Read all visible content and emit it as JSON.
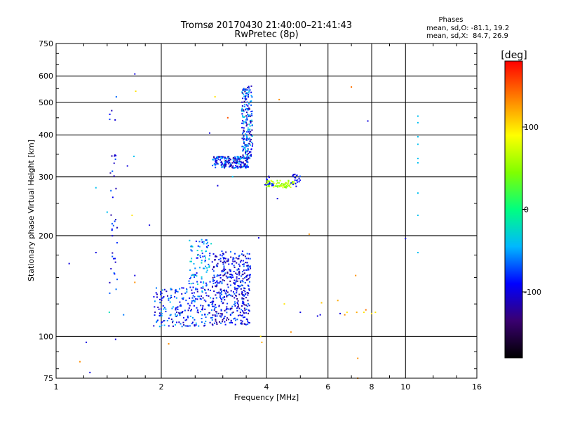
{
  "chart_data": {
    "type": "scatter",
    "title": "Tromsø 20170430 21:40:00–21:41:43",
    "subtitle": "RwPretec (8p)",
    "xlabel": "Frequency [MHz]",
    "ylabel": "Stationary phase Virtual Height [km]",
    "x_scale": "log",
    "y_scale": "log",
    "xlim": [
      1,
      16
    ],
    "ylim": [
      75,
      750
    ],
    "x_ticks": [
      1,
      2,
      4,
      6,
      8,
      10,
      16
    ],
    "y_ticks": [
      75,
      100,
      200,
      300,
      400,
      500,
      600,
      750
    ],
    "grid": true,
    "phase_info": {
      "title": "Phases",
      "line_o": "mean, sd,O: -81.1, 19.2",
      "line_x": "mean, sd,X:  84.7, 26.9"
    },
    "colorbar": {
      "label": "[deg]",
      "range": [
        -180,
        180
      ],
      "ticks": [
        100,
        0,
        -100
      ],
      "colormap": [
        "#000000",
        "#3a0070",
        "#0000ff",
        "#00b8ff",
        "#00ff80",
        "#80ff00",
        "#ffff00",
        "#ff8000",
        "#ff0000"
      ]
    },
    "clusters": [
      {
        "x": [
          2.8,
          3.6
        ],
        "y": [
          108,
          180
        ],
        "phase": [
          -130,
          -60
        ],
        "count": 420
      },
      {
        "x": [
          1.9,
          2.8
        ],
        "y": [
          107,
          140
        ],
        "phase": [
          -120,
          -40
        ],
        "count": 220
      },
      {
        "x": [
          2.4,
          2.8
        ],
        "y": [
          140,
          195
        ],
        "phase": [
          -100,
          -20
        ],
        "count": 90
      },
      {
        "x": [
          2.8,
          3.55
        ],
        "y": [
          318,
          345
        ],
        "phase": [
          -130,
          -40
        ],
        "count": 200
      },
      {
        "x": [
          3.4,
          3.65
        ],
        "y": [
          340,
          560
        ],
        "phase": [
          -130,
          -30
        ],
        "count": 200
      },
      {
        "x": [
          3.95,
          4.8
        ],
        "y": [
          278,
          292
        ],
        "phase": [
          40,
          80
        ],
        "count": 70
      },
      {
        "x": [
          4.7,
          5.0
        ],
        "y": [
          280,
          305
        ],
        "phase": [
          -110,
          -70
        ],
        "count": 20
      },
      {
        "x": [
          3.95,
          4.2
        ],
        "y": [
          282,
          302
        ],
        "phase": [
          -120,
          -60
        ],
        "count": 15
      },
      {
        "x": [
          1.42,
          1.5
        ],
        "y": [
          120,
          560
        ],
        "phase": [
          -120,
          -60
        ],
        "count": 40
      }
    ],
    "points": [
      {
        "x": 1.09,
        "y": 165,
        "phase": -100
      },
      {
        "x": 1.22,
        "y": 96,
        "phase": -100
      },
      {
        "x": 1.25,
        "y": 78,
        "phase": -100
      },
      {
        "x": 1.17,
        "y": 84,
        "phase": 130
      },
      {
        "x": 1.3,
        "y": 278,
        "phase": -40
      },
      {
        "x": 1.3,
        "y": 178,
        "phase": -100
      },
      {
        "x": 1.4,
        "y": 235,
        "phase": -40
      },
      {
        "x": 1.42,
        "y": 118,
        "phase": -20
      },
      {
        "x": 1.56,
        "y": 116,
        "phase": -60
      },
      {
        "x": 1.48,
        "y": 98,
        "phase": -100
      },
      {
        "x": 1.6,
        "y": 323,
        "phase": -100
      },
      {
        "x": 1.65,
        "y": 230,
        "phase": 100
      },
      {
        "x": 1.68,
        "y": 152,
        "phase": -100
      },
      {
        "x": 1.68,
        "y": 145,
        "phase": 130
      },
      {
        "x": 1.67,
        "y": 345,
        "phase": -40
      },
      {
        "x": 1.68,
        "y": 608,
        "phase": -100
      },
      {
        "x": 1.69,
        "y": 540,
        "phase": 100
      },
      {
        "x": 1.85,
        "y": 215,
        "phase": -100
      },
      {
        "x": 2.1,
        "y": 95,
        "phase": 130
      },
      {
        "x": 2.85,
        "y": 520,
        "phase": 100
      },
      {
        "x": 3.1,
        "y": 450,
        "phase": 150
      },
      {
        "x": 2.9,
        "y": 282,
        "phase": -100
      },
      {
        "x": 2.75,
        "y": 405,
        "phase": -100
      },
      {
        "x": 3.2,
        "y": 300,
        "phase": -40
      },
      {
        "x": 3.8,
        "y": 197,
        "phase": -100
      },
      {
        "x": 3.85,
        "y": 100,
        "phase": 100
      },
      {
        "x": 3.88,
        "y": 96,
        "phase": 120
      },
      {
        "x": 4.35,
        "y": 510,
        "phase": 130
      },
      {
        "x": 4.3,
        "y": 258,
        "phase": -100
      },
      {
        "x": 4.5,
        "y": 125,
        "phase": 100
      },
      {
        "x": 4.7,
        "y": 103,
        "phase": 130
      },
      {
        "x": 5.0,
        "y": 118,
        "phase": -100
      },
      {
        "x": 5.3,
        "y": 202,
        "phase": 130
      },
      {
        "x": 5.6,
        "y": 115,
        "phase": -100
      },
      {
        "x": 5.7,
        "y": 116,
        "phase": -100
      },
      {
        "x": 5.75,
        "y": 126,
        "phase": 110
      },
      {
        "x": 6.4,
        "y": 128,
        "phase": 120
      },
      {
        "x": 6.5,
        "y": 117,
        "phase": -100
      },
      {
        "x": 6.7,
        "y": 116,
        "phase": 130
      },
      {
        "x": 6.8,
        "y": 118,
        "phase": 100
      },
      {
        "x": 7.0,
        "y": 556,
        "phase": 140
      },
      {
        "x": 7.2,
        "y": 152,
        "phase": 130
      },
      {
        "x": 7.25,
        "y": 118,
        "phase": 120
      },
      {
        "x": 7.3,
        "y": 86,
        "phase": 130
      },
      {
        "x": 7.3,
        "y": 75,
        "phase": 130
      },
      {
        "x": 7.6,
        "y": 118,
        "phase": 100
      },
      {
        "x": 7.7,
        "y": 120,
        "phase": 140
      },
      {
        "x": 7.8,
        "y": 440,
        "phase": -100
      },
      {
        "x": 8.0,
        "y": 117,
        "phase": 100
      },
      {
        "x": 8.2,
        "y": 118,
        "phase": 100
      },
      {
        "x": 10.0,
        "y": 196,
        "phase": -100
      },
      {
        "x": 10.85,
        "y": 178,
        "phase": -40
      },
      {
        "x": 10.85,
        "y": 230,
        "phase": -40
      },
      {
        "x": 10.85,
        "y": 268,
        "phase": -40
      },
      {
        "x": 10.85,
        "y": 330,
        "phase": -40
      },
      {
        "x": 10.85,
        "y": 340,
        "phase": -40
      },
      {
        "x": 10.85,
        "y": 375,
        "phase": -40
      },
      {
        "x": 10.85,
        "y": 395,
        "phase": -40
      },
      {
        "x": 10.85,
        "y": 435,
        "phase": -40
      },
      {
        "x": 10.85,
        "y": 455,
        "phase": -40
      }
    ]
  }
}
